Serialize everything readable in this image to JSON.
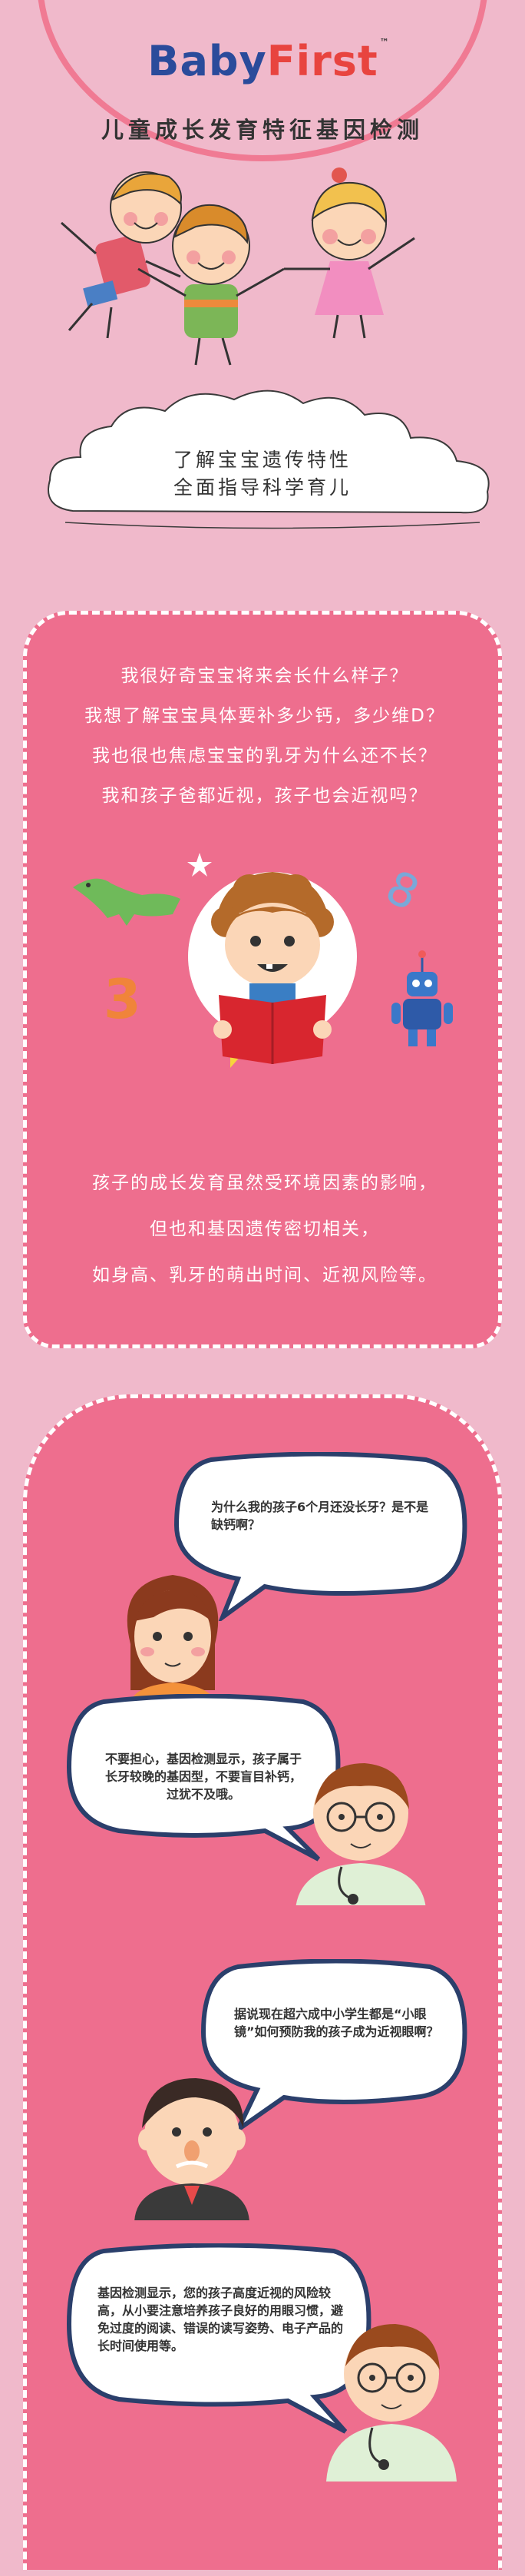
{
  "header": {
    "brand_left": "Baby",
    "brand_right": "First",
    "brand_tm": "™",
    "subtitle": "儿童成长发育特征基因检测",
    "slogan_line1": "了解宝宝遗传特性",
    "slogan_line2": "全面指导科学育儿"
  },
  "intro": {
    "questions": [
      "我很好奇宝宝将来会长什么样子？",
      "我想了解宝宝具体要补多少钙，多少维D？",
      "我也很也焦虑宝宝的乳牙为什么还不长？",
      "我和孩子爸都近视，孩子也会近视吗？"
    ],
    "closing": [
      "孩子的成长发育虽然受环境因素的影响，",
      "但也和基因遗传密切相关，",
      "如身高、乳牙的萌出时间、近视风险等。"
    ]
  },
  "dialogue": [
    {
      "speaker": "mother",
      "text": "为什么我的孩子6个月还没长牙？是不是缺钙啊？"
    },
    {
      "speaker": "doctor",
      "text": "不要担心，基因检测显示，孩子属于长牙较晚的基因型，不要盲目补钙，过犹不及哦。"
    },
    {
      "speaker": "father",
      "text": "据说现在超六成中小学生都是“小眼镜”如何预防我的孩子成为近视眼啊？"
    },
    {
      "speaker": "doctor",
      "text": "基因检测显示，您的孩子高度近视的风险较高，从小要注意培养孩子良好的用眼习惯，避免过度的阅读、错误的读写姿势、电子产品的长时间使用等。"
    }
  ],
  "colors": {
    "background": "#f0b9cb",
    "panel": "#ee6e8e",
    "brand_blue": "#2a4b9b",
    "brand_red": "#e8443f",
    "bubble_border": "#2b3f6b"
  }
}
